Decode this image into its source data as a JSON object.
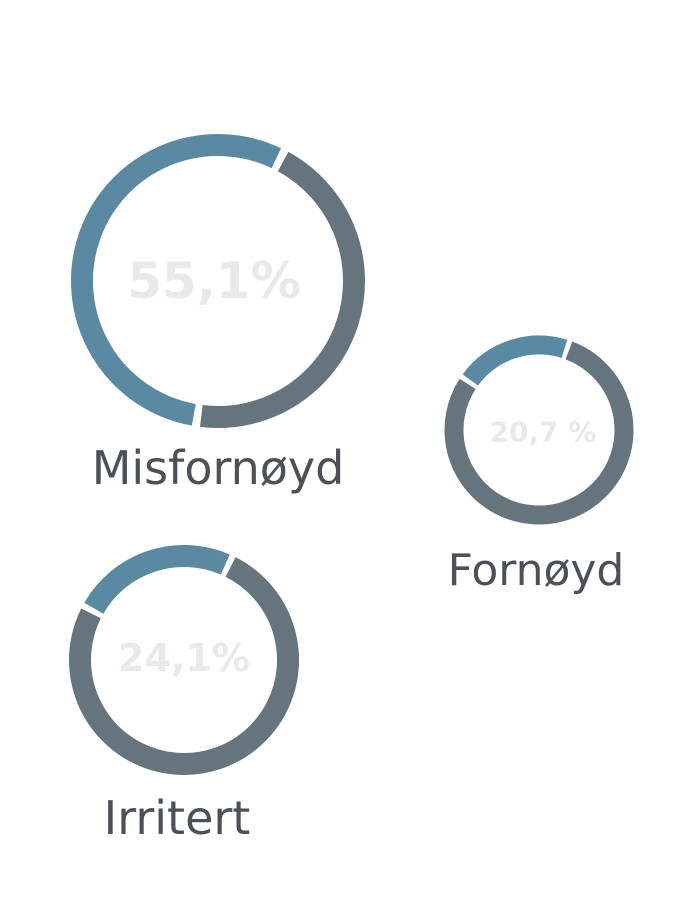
{
  "chart_data": {
    "type": "pie",
    "variant": "donut",
    "series": [
      {
        "name": "Misfornøyd",
        "value": 55.1,
        "label": "55,1%"
      },
      {
        "name": "Fornøyd",
        "value": 20.7,
        "label": "20,7 %"
      },
      {
        "name": "Irritert",
        "value": 24.1,
        "label": "24,1%"
      }
    ],
    "colors": {
      "value_arc": "#5b89a1",
      "remainder_arc": "#66757d",
      "percent_text": "#e6ebe8",
      "category_text": "#4a5158",
      "background": "#ffffff"
    }
  }
}
